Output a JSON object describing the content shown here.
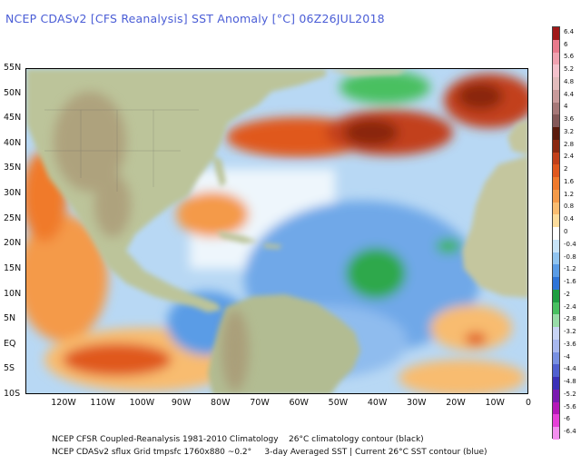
{
  "title": "NCEP CDASv2 [CFS Reanalysis] SST Anomaly [°C] 06Z26JUL2018",
  "map": {
    "region": "Atlantic Ocean and Americas",
    "lat_labels": [
      "55N",
      "50N",
      "45N",
      "40N",
      "35N",
      "30N",
      "25N",
      "20N",
      "15N",
      "10N",
      "5N",
      "EQ",
      "5S",
      "10S"
    ],
    "lon_labels": [
      "120W",
      "110W",
      "100W",
      "90W",
      "80W",
      "70W",
      "60W",
      "50W",
      "40W",
      "30W",
      "20W",
      "10W",
      "0"
    ]
  },
  "colorbar": {
    "labels": [
      "6.4",
      "6",
      "5.6",
      "5.2",
      "4.8",
      "4.4",
      "4",
      "3.6",
      "3.2",
      "2.8",
      "2.4",
      "2",
      "1.6",
      "1.2",
      "0.8",
      "0.4",
      "0",
      "-0.4",
      "-0.8",
      "-1.2",
      "-1.6",
      "-2",
      "-2.4",
      "-2.8",
      "-3.2",
      "-3.6",
      "-4",
      "-4.4",
      "-4.8",
      "-5.2",
      "-5.6",
      "-6",
      "-6.4"
    ],
    "colors": [
      "#a01818",
      "#e87a8c",
      "#f0a2b0",
      "#f4c2cc",
      "#e2bcbc",
      "#c89a9a",
      "#a67878",
      "#845858",
      "#5a1a0c",
      "#8a2810",
      "#c2401a",
      "#e0581e",
      "#f07a2c",
      "#f49a48",
      "#f8bc70",
      "#fcdc9c",
      "#ffffff",
      "#c8e4f8",
      "#90c4f0",
      "#5a9ce6",
      "#2e74d8",
      "#1e9e40",
      "#48c060",
      "#98dca8",
      "#c8d4f4",
      "#a8b8ee",
      "#7890e2",
      "#5060d0",
      "#3a30b8",
      "#7a1ab0",
      "#b418b8",
      "#e640d8",
      "#f490f0"
    ]
  },
  "footer": {
    "line1": "NCEP CFSR Coupled-Reanalysis 1981-2010 Climatology    26°C climatology contour (black)",
    "line2": "NCEP CDASv2 sflux Grid tmpsfc 1760x880 ~0.2°     3-day Averaged SST | Current 26°C SST contour (blue)"
  }
}
